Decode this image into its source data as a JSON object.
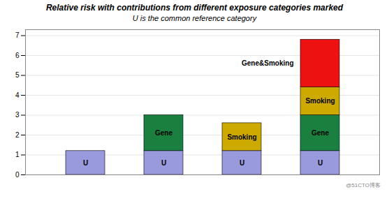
{
  "chart_data": {
    "type": "bar",
    "title": "Relative risk with contributions from different exposure categories marked",
    "subtitle": "U is the common reference category",
    "categories": [
      null,
      null,
      null,
      null
    ],
    "series": [
      {
        "name": "U",
        "color": "#9999dd",
        "values": [
          1.2,
          1.2,
          1.2,
          1.2
        ]
      },
      {
        "name": "Gene",
        "color": "#1a8040",
        "values": [
          0.0,
          1.8,
          0.0,
          1.8
        ]
      },
      {
        "name": "Smoking",
        "color": "#ccaa00",
        "values": [
          0.0,
          0.0,
          1.4,
          1.4
        ]
      },
      {
        "name": "Gene&Smoking",
        "color": "#ee1111",
        "values": [
          0.0,
          0.0,
          0.0,
          2.4
        ]
      }
    ],
    "stacked": true,
    "ylim": [
      0,
      7.3
    ],
    "yticks": [
      0,
      1,
      2,
      3,
      4,
      5,
      6,
      7
    ],
    "grid": true,
    "tick_labels": "y",
    "annotations": [
      "@51CTO博客"
    ]
  }
}
